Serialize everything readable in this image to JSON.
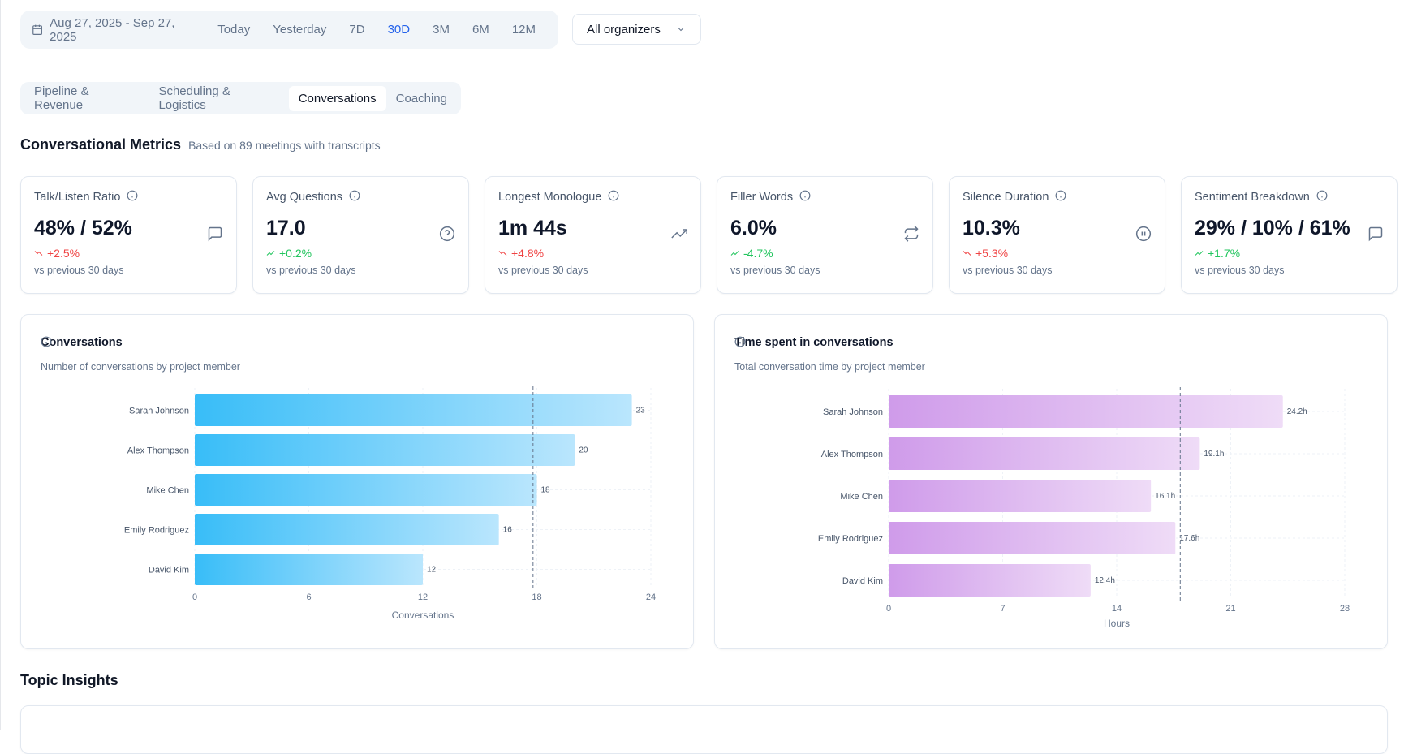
{
  "date_filter": {
    "range": "Aug 27, 2025 - Sep 27, 2025",
    "options": [
      "Today",
      "Yesterday",
      "7D",
      "30D",
      "3M",
      "6M",
      "12M"
    ],
    "active": "30D"
  },
  "organizer_filter": {
    "value": "All organizers"
  },
  "tabs": [
    {
      "label": "Pipeline & Revenue"
    },
    {
      "label": "Scheduling & Logistics"
    },
    {
      "label": "Conversations",
      "active": true
    },
    {
      "label": "Coaching"
    }
  ],
  "section": {
    "title": "Conversational Metrics",
    "subtitle": "Based on 89 meetings with transcripts"
  },
  "metrics": [
    {
      "label": "Talk/Listen Ratio",
      "value": "48% / 52%",
      "change": "+2.5%",
      "trend": "down",
      "compare": "vs previous 30 days",
      "icon": "message-square-icon"
    },
    {
      "label": "Avg Questions",
      "value": "17.0",
      "change": "+0.2%",
      "trend": "up",
      "compare": "vs previous 30 days",
      "icon": "help-circle-icon"
    },
    {
      "label": "Longest Monologue",
      "value": "1m 44s",
      "change": "+4.8%",
      "trend": "down",
      "compare": "vs previous 30 days",
      "icon": "trending-up-icon"
    },
    {
      "label": "Filler Words",
      "value": "6.0%",
      "change": "-4.7%",
      "trend": "up",
      "compare": "vs previous 30 days",
      "icon": "repeat-icon"
    },
    {
      "label": "Silence Duration",
      "value": "10.3%",
      "change": "+5.3%",
      "trend": "down",
      "compare": "vs previous 30 days",
      "icon": "pause-circle-icon"
    },
    {
      "label": "Sentiment Breakdown",
      "value": "29% / 10% / 61%",
      "change": "+1.7%",
      "trend": "up",
      "compare": "vs previous 30 days",
      "icon": "message-square-icon"
    }
  ],
  "chart_data": [
    {
      "type": "bar",
      "orientation": "horizontal",
      "title": "Conversations",
      "subtitle": "Number of conversations by project member",
      "xlabel": "Conversations",
      "categories": [
        "Sarah Johnson",
        "Alex Thompson",
        "Mike Chen",
        "Emily Rodriguez",
        "David Kim"
      ],
      "values": [
        23,
        20,
        18,
        16,
        12
      ],
      "data_labels": [
        "23",
        "20",
        "18",
        "16",
        "12"
      ],
      "xlim": [
        0,
        24
      ],
      "xticks": [
        0,
        6,
        12,
        18,
        24
      ],
      "reference_line": 17.8,
      "grid": true,
      "gradient": [
        "#38bdf8",
        "#bae6fd"
      ]
    },
    {
      "type": "bar",
      "orientation": "horizontal",
      "title": "Time spent in conversations",
      "subtitle": "Total conversation time by project member",
      "xlabel": "Hours",
      "categories": [
        "Sarah Johnson",
        "Alex Thompson",
        "Mike Chen",
        "Emily Rodriguez",
        "David Kim"
      ],
      "values": [
        24.2,
        19.1,
        16.1,
        17.6,
        12.4
      ],
      "data_labels": [
        "24.2h",
        "19.1h",
        "16.1h",
        "17.6h",
        "12.4h"
      ],
      "xlim": [
        0,
        28
      ],
      "xticks": [
        0,
        7,
        14,
        21,
        28
      ],
      "reference_line": 17.9,
      "grid": true,
      "gradient": [
        "#cf9bea",
        "#efdcf7"
      ]
    }
  ],
  "topic_insights": {
    "title": "Topic Insights"
  },
  "colors": {
    "accent": "#2563eb",
    "positive": "#22c55e",
    "negative": "#ef4444"
  }
}
